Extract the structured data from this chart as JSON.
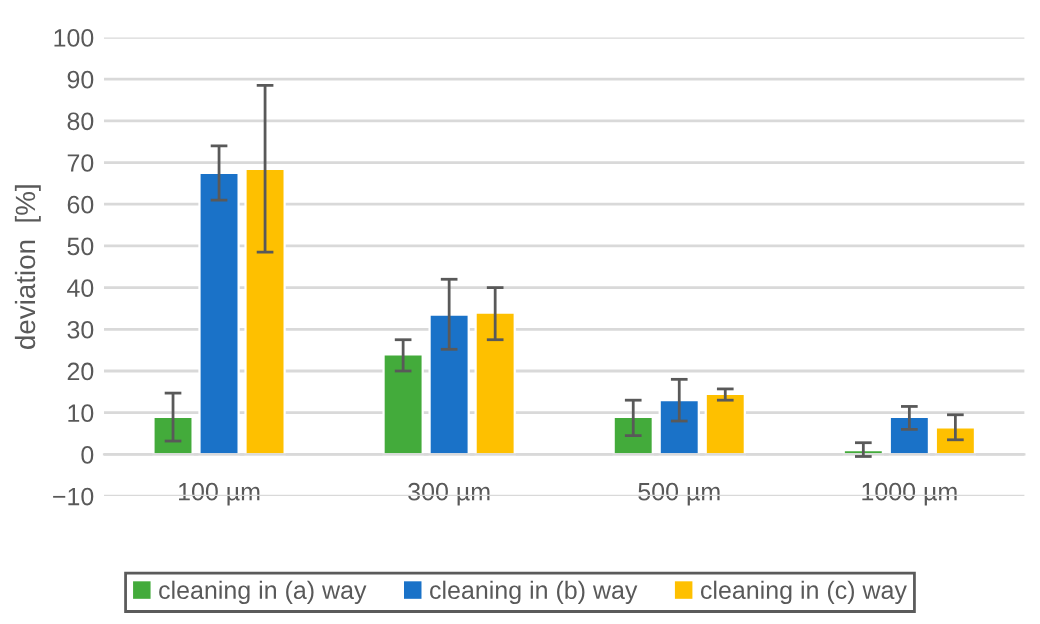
{
  "chart_data": {
    "type": "bar",
    "ylabel": "deviation  [%]",
    "categories": [
      "100 µm",
      "300 µm",
      "500 µm",
      "1000 µm"
    ],
    "series": [
      {
        "name": "cleaning in (a) way",
        "color": "#43ab3b",
        "values": [
          9,
          24,
          9,
          1
        ],
        "errors": [
          [
            3.2,
            14.7
          ],
          [
            20,
            27.5
          ],
          [
            4.5,
            13
          ],
          [
            -0.5,
            2.8
          ]
        ]
      },
      {
        "name": "cleaning in (b) way",
        "color": "#1a72c8",
        "values": [
          67.5,
          33.5,
          13,
          9
        ],
        "errors": [
          [
            61,
            74
          ],
          [
            25.2,
            42
          ],
          [
            8,
            18
          ],
          [
            6,
            11.5
          ]
        ]
      },
      {
        "name": "cleaning in (c) way",
        "color": "#fec000",
        "values": [
          68.5,
          34,
          14.5,
          6.5
        ],
        "errors": [
          [
            48.5,
            88.5
          ],
          [
            27.5,
            40
          ],
          [
            13,
            15.7
          ],
          [
            3.5,
            9.5
          ]
        ]
      }
    ],
    "ylim": [
      -10,
      100
    ],
    "yticks": [
      {
        "value": -10,
        "label": "−10"
      },
      0,
      10,
      20,
      30,
      40,
      50,
      60,
      70,
      80,
      90,
      100
    ],
    "grid": "y",
    "legend": "bottom"
  }
}
